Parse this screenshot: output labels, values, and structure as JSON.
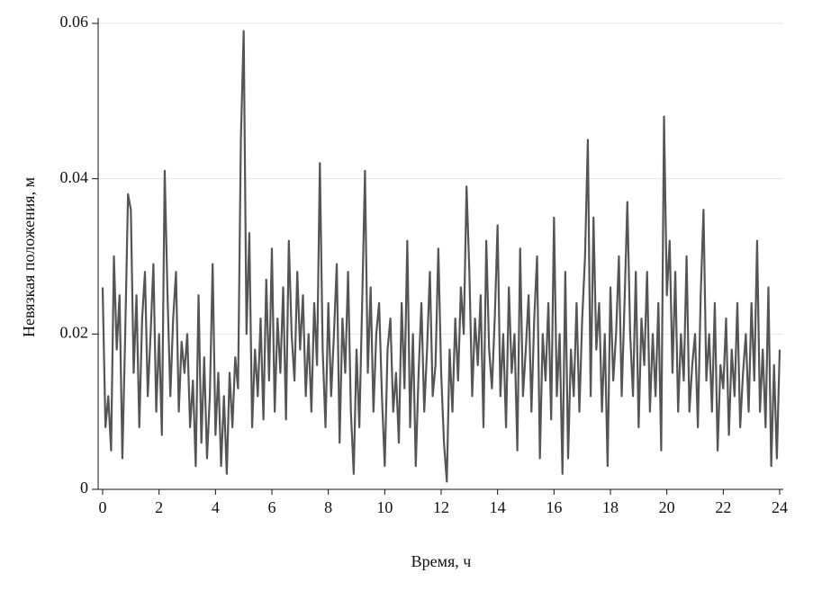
{
  "chart_data": {
    "type": "line",
    "x_label": "Время, ч",
    "y_label": "Невязкая положения, м",
    "x": [
      0,
      0.1,
      0.2,
      0.3,
      0.4,
      0.5,
      0.6,
      0.7,
      0.8,
      0.9,
      1,
      1.1,
      1.2,
      1.3,
      1.4,
      1.5,
      1.6,
      1.7,
      1.8,
      1.9,
      2,
      2.1,
      2.2,
      2.3,
      2.4,
      2.5,
      2.6,
      2.7,
      2.8,
      2.9,
      3,
      3.1,
      3.2,
      3.3,
      3.4,
      3.5,
      3.6,
      3.7,
      3.8,
      3.9,
      4,
      4.1,
      4.2,
      4.3,
      4.4,
      4.5,
      4.6,
      4.7,
      4.8,
      4.9,
      5,
      5.1,
      5.2,
      5.3,
      5.4,
      5.5,
      5.6,
      5.7,
      5.8,
      5.9,
      6,
      6.1,
      6.2,
      6.3,
      6.4,
      6.5,
      6.6,
      6.7,
      6.8,
      6.9,
      7,
      7.1,
      7.2,
      7.3,
      7.4,
      7.5,
      7.6,
      7.7,
      7.8,
      7.9,
      8,
      8.1,
      8.2,
      8.3,
      8.4,
      8.5,
      8.6,
      8.7,
      8.8,
      8.9,
      9,
      9.1,
      9.2,
      9.3,
      9.4,
      9.5,
      9.6,
      9.7,
      9.8,
      9.9,
      10,
      10.1,
      10.2,
      10.3,
      10.4,
      10.5,
      10.6,
      10.7,
      10.8,
      10.9,
      11,
      11.1,
      11.2,
      11.3,
      11.4,
      11.5,
      11.6,
      11.7,
      11.8,
      11.9,
      12,
      12.1,
      12.2,
      12.3,
      12.4,
      12.5,
      12.6,
      12.7,
      12.8,
      12.9,
      13,
      13.1,
      13.2,
      13.3,
      13.4,
      13.5,
      13.6,
      13.7,
      13.8,
      13.9,
      14,
      14.1,
      14.2,
      14.3,
      14.4,
      14.5,
      14.6,
      14.7,
      14.8,
      14.9,
      15,
      15.1,
      15.2,
      15.3,
      15.4,
      15.5,
      15.6,
      15.7,
      15.8,
      15.9,
      16,
      16.1,
      16.2,
      16.3,
      16.4,
      16.5,
      16.6,
      16.7,
      16.8,
      16.9,
      17,
      17.1,
      17.2,
      17.3,
      17.4,
      17.5,
      17.6,
      17.7,
      17.8,
      17.9,
      18,
      18.1,
      18.2,
      18.3,
      18.4,
      18.5,
      18.6,
      18.7,
      18.8,
      18.9,
      19,
      19.1,
      19.2,
      19.3,
      19.4,
      19.5,
      19.6,
      19.7,
      19.8,
      19.9,
      20,
      20.1,
      20.2,
      20.3,
      20.4,
      20.5,
      20.6,
      20.7,
      20.8,
      20.9,
      21,
      21.1,
      21.2,
      21.3,
      21.4,
      21.5,
      21.6,
      21.7,
      21.8,
      21.9,
      22,
      22.1,
      22.2,
      22.3,
      22.4,
      22.5,
      22.6,
      22.7,
      22.8,
      22.9,
      23,
      23.1,
      23.2,
      23.3,
      23.4,
      23.5,
      23.6,
      23.7,
      23.8,
      23.9,
      24
    ],
    "series": [
      {
        "color": "#555555",
        "values": [
          0.026,
          0.008,
          0.012,
          0.005,
          0.03,
          0.018,
          0.025,
          0.004,
          0.02,
          0.038,
          0.036,
          0.015,
          0.025,
          0.008,
          0.022,
          0.028,
          0.012,
          0.02,
          0.029,
          0.01,
          0.02,
          0.007,
          0.041,
          0.025,
          0.012,
          0.022,
          0.028,
          0.01,
          0.019,
          0.015,
          0.02,
          0.008,
          0.014,
          0.003,
          0.025,
          0.006,
          0.017,
          0.004,
          0.012,
          0.029,
          0.007,
          0.015,
          0.003,
          0.012,
          0.002,
          0.015,
          0.008,
          0.017,
          0.013,
          0.045,
          0.059,
          0.02,
          0.033,
          0.008,
          0.018,
          0.012,
          0.022,
          0.009,
          0.027,
          0.014,
          0.031,
          0.01,
          0.022,
          0.015,
          0.026,
          0.009,
          0.032,
          0.02,
          0.014,
          0.028,
          0.018,
          0.025,
          0.012,
          0.02,
          0.01,
          0.024,
          0.016,
          0.042,
          0.018,
          0.008,
          0.024,
          0.012,
          0.02,
          0.029,
          0.006,
          0.022,
          0.015,
          0.028,
          0.01,
          0.002,
          0.018,
          0.008,
          0.024,
          0.041,
          0.015,
          0.026,
          0.01,
          0.02,
          0.024,
          0.012,
          0.003,
          0.018,
          0.022,
          0.01,
          0.015,
          0.006,
          0.024,
          0.013,
          0.032,
          0.008,
          0.02,
          0.003,
          0.015,
          0.024,
          0.01,
          0.018,
          0.028,
          0.012,
          0.016,
          0.031,
          0.015,
          0.006,
          0.001,
          0.018,
          0.01,
          0.022,
          0.014,
          0.026,
          0.02,
          0.039,
          0.028,
          0.012,
          0.022,
          0.016,
          0.025,
          0.008,
          0.032,
          0.018,
          0.013,
          0.022,
          0.034,
          0.012,
          0.02,
          0.008,
          0.026,
          0.015,
          0.02,
          0.005,
          0.031,
          0.012,
          0.018,
          0.025,
          0.01,
          0.022,
          0.03,
          0.004,
          0.02,
          0.014,
          0.024,
          0.009,
          0.035,
          0.012,
          0.02,
          0.002,
          0.028,
          0.004,
          0.018,
          0.012,
          0.024,
          0.01,
          0.022,
          0.03,
          0.045,
          0.012,
          0.035,
          0.018,
          0.024,
          0.01,
          0.02,
          0.003,
          0.026,
          0.014,
          0.02,
          0.03,
          0.012,
          0.024,
          0.037,
          0.02,
          0.012,
          0.028,
          0.008,
          0.022,
          0.016,
          0.028,
          0.01,
          0.02,
          0.012,
          0.024,
          0.005,
          0.048,
          0.025,
          0.032,
          0.015,
          0.028,
          0.01,
          0.02,
          0.014,
          0.03,
          0.01,
          0.016,
          0.02,
          0.008,
          0.025,
          0.036,
          0.014,
          0.02,
          0.01,
          0.024,
          0.005,
          0.016,
          0.013,
          0.022,
          0.007,
          0.018,
          0.012,
          0.024,
          0.008,
          0.015,
          0.02,
          0.01,
          0.024,
          0.014,
          0.032,
          0.01,
          0.018,
          0.008,
          0.026,
          0.003,
          0.016,
          0.004,
          0.018
        ]
      }
    ],
    "xlim": [
      0,
      24
    ],
    "xticks": [
      0,
      2,
      4,
      6,
      8,
      10,
      12,
      14,
      16,
      18,
      20,
      22,
      24
    ],
    "ylim": [
      0,
      0.06
    ],
    "yticks": [
      0,
      0.02,
      0.04,
      0.06
    ],
    "grid": true
  }
}
